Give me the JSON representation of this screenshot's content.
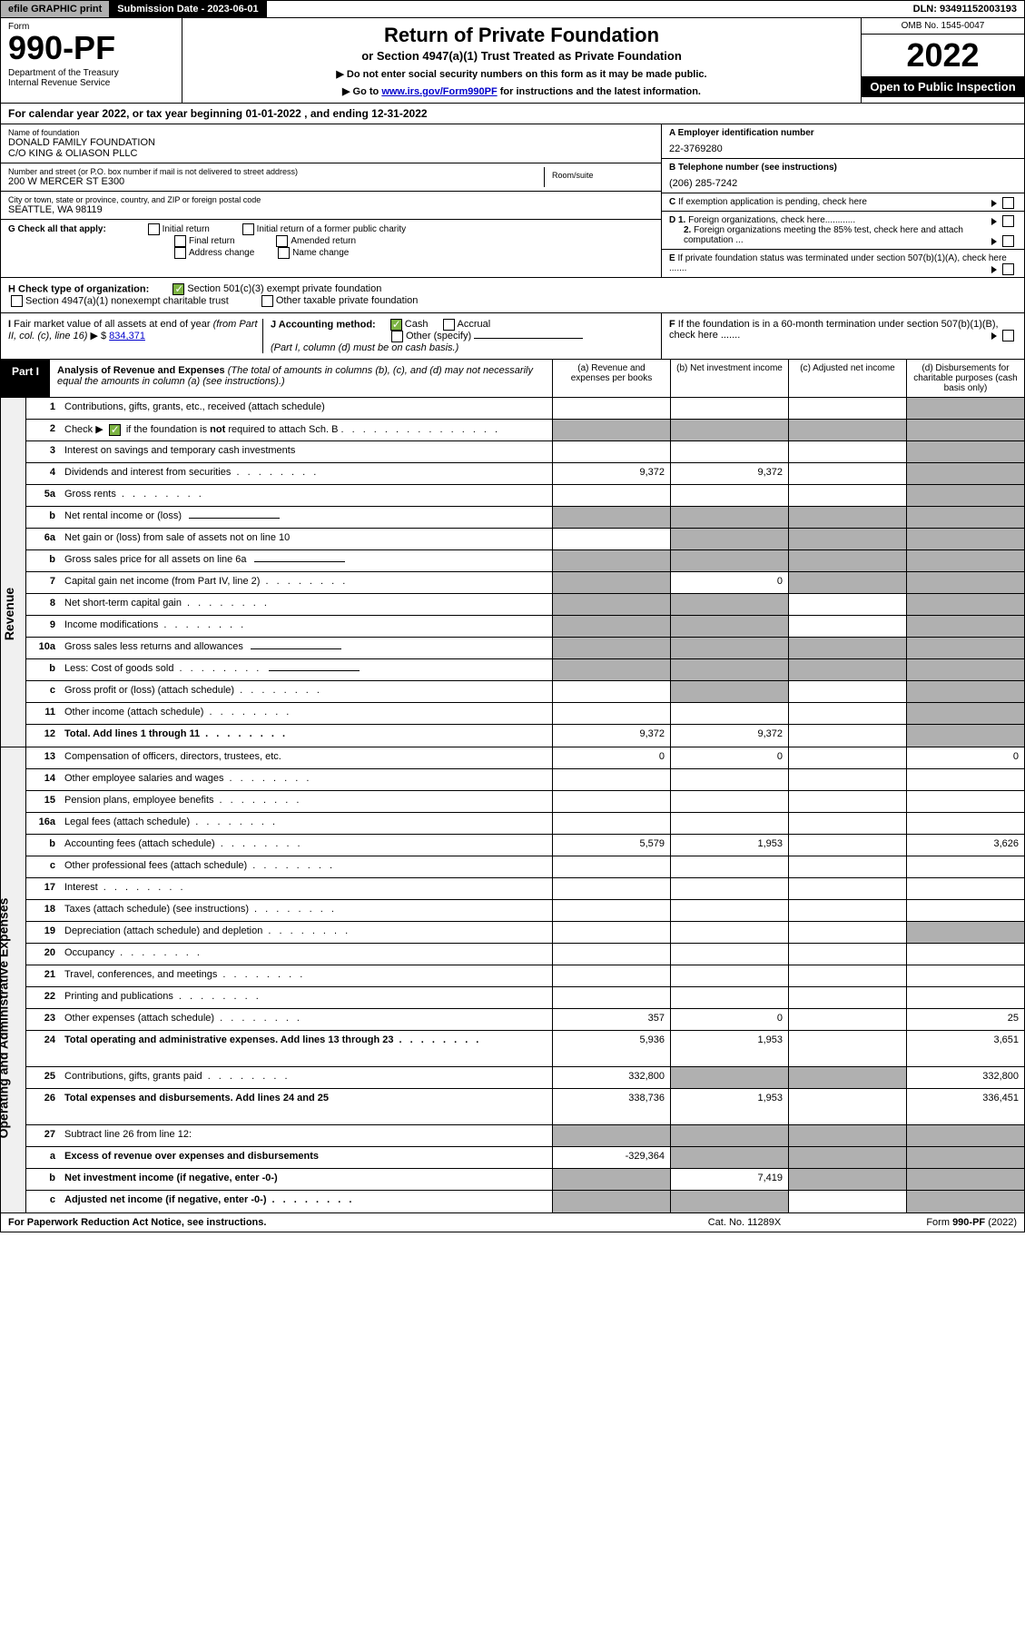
{
  "top_bar": {
    "efile": "efile GRAPHIC print",
    "submission": "Submission Date - 2023-06-01",
    "dln": "DLN: 93491152003193"
  },
  "header": {
    "form_label": "Form",
    "form_number": "990-PF",
    "dept": "Department of the Treasury",
    "irs": "Internal Revenue Service",
    "title": "Return of Private Foundation",
    "subtitle": "or Section 4947(a)(1) Trust Treated as Private Foundation",
    "instr1": "▶ Do not enter social security numbers on this form as it may be made public.",
    "instr2_pre": "▶ Go to ",
    "instr2_link": "www.irs.gov/Form990PF",
    "instr2_post": " for instructions and the latest information.",
    "omb": "OMB No. 1545-0047",
    "year": "2022",
    "open": "Open to Public Inspection"
  },
  "calendar": "For calendar year 2022, or tax year beginning 01-01-2022                        , and ending 12-31-2022",
  "foundation": {
    "name_label": "Name of foundation",
    "name1": "DONALD FAMILY FOUNDATION",
    "name2": "C/O KING & OLIASON PLLC",
    "addr_label": "Number and street (or P.O. box number if mail is not delivered to street address)",
    "addr": "200 W MERCER ST E300",
    "room_label": "Room/suite",
    "city_label": "City or town, state or province, country, and ZIP or foreign postal code",
    "city": "SEATTLE, WA  98119",
    "ein_label": "A Employer identification number",
    "ein": "22-3769280",
    "phone_label": "B Telephone number (see instructions)",
    "phone": "(206) 285-7242",
    "c_label": "C If exemption application is pending, check here",
    "d1_label": "D 1. Foreign organizations, check here............",
    "d2_label": "2. Foreign organizations meeting the 85% test, check here and attach computation ...",
    "e_label": "E  If private foundation status was terminated under section 507(b)(1)(A), check here .......",
    "f_label": "F  If the foundation is in a 60-month termination under section 507(b)(1)(B), check here ......."
  },
  "g": {
    "label": "G Check all that apply:",
    "opts": [
      "Initial return",
      "Initial return of a former public charity",
      "Final return",
      "Amended return",
      "Address change",
      "Name change"
    ]
  },
  "h": {
    "label": "H Check type of organization:",
    "opt1": "Section 501(c)(3) exempt private foundation",
    "opt2": "Section 4947(a)(1) nonexempt charitable trust",
    "opt3": "Other taxable private foundation"
  },
  "i": {
    "label": "I Fair market value of all assets at end of year (from Part II, col. (c), line 16) ▶ $",
    "value": "834,371"
  },
  "j": {
    "label": "J Accounting method:",
    "cash": "Cash",
    "accrual": "Accrual",
    "other": "Other (specify)",
    "note": "(Part I, column (d) must be on cash basis.)"
  },
  "part1": {
    "label": "Part I",
    "title": "Analysis of Revenue and Expenses",
    "desc": "(The total of amounts in columns (b), (c), and (d) may not necessarily equal the amounts in column (a) (see instructions).)",
    "col_a": "(a)   Revenue and expenses per books",
    "col_b": "(b)   Net investment income",
    "col_c": "(c)   Adjusted net income",
    "col_d": "(d)   Disbursements for charitable purposes (cash basis only)"
  },
  "revenue_label": "Revenue",
  "expenses_label": "Operating and Administrative Expenses",
  "rows": [
    {
      "num": "1",
      "label": "Contributions, gifts, grants, etc., received (attach schedule)",
      "a": "",
      "b": "",
      "c": "",
      "d": "",
      "shade_d": true
    },
    {
      "num": "2",
      "label": "Check ▶ ☑ if the foundation is not required to attach Sch. B",
      "a": "",
      "b": "",
      "c": "",
      "d": "",
      "shade_all": true,
      "dotted": true,
      "is_check": true
    },
    {
      "num": "3",
      "label": "Interest on savings and temporary cash investments",
      "a": "",
      "b": "",
      "c": "",
      "d": "",
      "shade_d": true
    },
    {
      "num": "4",
      "label": "Dividends and interest from securities",
      "a": "9,372",
      "b": "9,372",
      "c": "",
      "d": "",
      "shade_d": true,
      "dotted": true
    },
    {
      "num": "5a",
      "label": "Gross rents",
      "a": "",
      "b": "",
      "c": "",
      "d": "",
      "shade_d": true,
      "dotted": true
    },
    {
      "num": "b",
      "label": "Net rental income or (loss)",
      "a": "",
      "b": "",
      "c": "",
      "d": "",
      "shade_all": true,
      "has_blank": true
    },
    {
      "num": "6a",
      "label": "Net gain or (loss) from sale of assets not on line 10",
      "a": "",
      "b": "",
      "c": "",
      "d": "",
      "shade_bcd": true
    },
    {
      "num": "b",
      "label": "Gross sales price for all assets on line 6a",
      "a": "",
      "b": "",
      "c": "",
      "d": "",
      "shade_all": true,
      "has_blank": true
    },
    {
      "num": "7",
      "label": "Capital gain net income (from Part IV, line 2)",
      "a": "",
      "b": "0",
      "c": "",
      "d": "",
      "shade_acd": true,
      "dotted": true
    },
    {
      "num": "8",
      "label": "Net short-term capital gain",
      "a": "",
      "b": "",
      "c": "",
      "d": "",
      "shade_abd": true,
      "dotted": true
    },
    {
      "num": "9",
      "label": "Income modifications",
      "a": "",
      "b": "",
      "c": "",
      "d": "",
      "shade_abd": true,
      "dotted": true
    },
    {
      "num": "10a",
      "label": "Gross sales less returns and allowances",
      "a": "",
      "b": "",
      "c": "",
      "d": "",
      "shade_all": true,
      "has_blank": true
    },
    {
      "num": "b",
      "label": "Less: Cost of goods sold",
      "a": "",
      "b": "",
      "c": "",
      "d": "",
      "shade_all": true,
      "has_blank": true,
      "dotted": true
    },
    {
      "num": "c",
      "label": "Gross profit or (loss) (attach schedule)",
      "a": "",
      "b": "",
      "c": "",
      "d": "",
      "shade_bd": true,
      "dotted": true
    },
    {
      "num": "11",
      "label": "Other income (attach schedule)",
      "a": "",
      "b": "",
      "c": "",
      "d": "",
      "shade_d": true,
      "dotted": true
    },
    {
      "num": "12",
      "label": "Total. Add lines 1 through 11",
      "a": "9,372",
      "b": "9,372",
      "c": "",
      "d": "",
      "shade_d": true,
      "bold": true,
      "dotted": true
    },
    {
      "num": "13",
      "label": "Compensation of officers, directors, trustees, etc.",
      "a": "0",
      "b": "0",
      "c": "",
      "d": "0"
    },
    {
      "num": "14",
      "label": "Other employee salaries and wages",
      "a": "",
      "b": "",
      "c": "",
      "d": "",
      "dotted": true
    },
    {
      "num": "15",
      "label": "Pension plans, employee benefits",
      "a": "",
      "b": "",
      "c": "",
      "d": "",
      "dotted": true
    },
    {
      "num": "16a",
      "label": "Legal fees (attach schedule)",
      "a": "",
      "b": "",
      "c": "",
      "d": "",
      "dotted": true
    },
    {
      "num": "b",
      "label": "Accounting fees (attach schedule)",
      "a": "5,579",
      "b": "1,953",
      "c": "",
      "d": "3,626",
      "dotted": true
    },
    {
      "num": "c",
      "label": "Other professional fees (attach schedule)",
      "a": "",
      "b": "",
      "c": "",
      "d": "",
      "dotted": true
    },
    {
      "num": "17",
      "label": "Interest",
      "a": "",
      "b": "",
      "c": "",
      "d": "",
      "dotted": true
    },
    {
      "num": "18",
      "label": "Taxes (attach schedule) (see instructions)",
      "a": "",
      "b": "",
      "c": "",
      "d": "",
      "dotted": true
    },
    {
      "num": "19",
      "label": "Depreciation (attach schedule) and depletion",
      "a": "",
      "b": "",
      "c": "",
      "d": "",
      "shade_d": true,
      "dotted": true
    },
    {
      "num": "20",
      "label": "Occupancy",
      "a": "",
      "b": "",
      "c": "",
      "d": "",
      "dotted": true
    },
    {
      "num": "21",
      "label": "Travel, conferences, and meetings",
      "a": "",
      "b": "",
      "c": "",
      "d": "",
      "dotted": true
    },
    {
      "num": "22",
      "label": "Printing and publications",
      "a": "",
      "b": "",
      "c": "",
      "d": "",
      "dotted": true
    },
    {
      "num": "23",
      "label": "Other expenses (attach schedule)",
      "a": "357",
      "b": "0",
      "c": "",
      "d": "25",
      "dotted": true
    },
    {
      "num": "24",
      "label": "Total operating and administrative expenses. Add lines 13 through 23",
      "a": "5,936",
      "b": "1,953",
      "c": "",
      "d": "3,651",
      "bold": true,
      "dotted": true,
      "tall": true
    },
    {
      "num": "25",
      "label": "Contributions, gifts, grants paid",
      "a": "332,800",
      "b": "",
      "c": "",
      "d": "332,800",
      "shade_bc": true,
      "dotted": true
    },
    {
      "num": "26",
      "label": "Total expenses and disbursements. Add lines 24 and 25",
      "a": "338,736",
      "b": "1,953",
      "c": "",
      "d": "336,451",
      "bold": true,
      "tall": true
    },
    {
      "num": "27",
      "label": "Subtract line 26 from line 12:",
      "a": "",
      "b": "",
      "c": "",
      "d": "",
      "shade_all": true
    },
    {
      "num": "a",
      "label": "Excess of revenue over expenses and disbursements",
      "a": "-329,364",
      "b": "",
      "c": "",
      "d": "",
      "shade_bcd": true,
      "bold": true
    },
    {
      "num": "b",
      "label": "Net investment income (if negative, enter -0-)",
      "a": "",
      "b": "7,419",
      "c": "",
      "d": "",
      "shade_acd": true,
      "bold": true
    },
    {
      "num": "c",
      "label": "Adjusted net income (if negative, enter -0-)",
      "a": "",
      "b": "",
      "c": "",
      "d": "",
      "shade_abd": true,
      "bold": true,
      "dotted": true
    }
  ],
  "footer": {
    "left": "For Paperwork Reduction Act Notice, see instructions.",
    "center": "Cat. No. 11289X",
    "right": "Form 990-PF (2022)"
  }
}
